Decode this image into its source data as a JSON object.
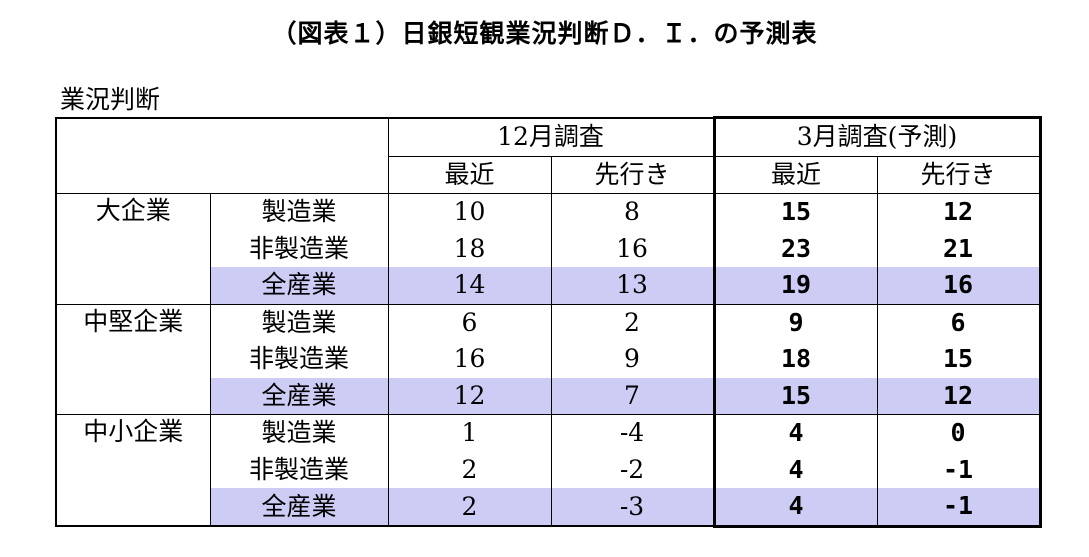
{
  "title": "（図表１）日銀短観業況判断Ｄ．Ｉ．の予測表",
  "section_label": "業況判断",
  "header": {
    "survey_dec": "12月調査",
    "survey_mar": "3月調査(予測)",
    "recent": "最近",
    "outlook": "先行き"
  },
  "groups": [
    {
      "name": "大企業",
      "rows": [
        {
          "label": "製造業",
          "dec_recent": "10",
          "dec_outlook": "8",
          "mar_recent": "15",
          "mar_outlook": "12",
          "highlight": false
        },
        {
          "label": "非製造業",
          "dec_recent": "18",
          "dec_outlook": "16",
          "mar_recent": "23",
          "mar_outlook": "21",
          "highlight": false
        },
        {
          "label": "全産業",
          "dec_recent": "14",
          "dec_outlook": "13",
          "mar_recent": "19",
          "mar_outlook": "16",
          "highlight": true
        }
      ]
    },
    {
      "name": "中堅企業",
      "rows": [
        {
          "label": "製造業",
          "dec_recent": "6",
          "dec_outlook": "2",
          "mar_recent": "9",
          "mar_outlook": "6",
          "highlight": false
        },
        {
          "label": "非製造業",
          "dec_recent": "16",
          "dec_outlook": "9",
          "mar_recent": "18",
          "mar_outlook": "15",
          "highlight": false
        },
        {
          "label": "全産業",
          "dec_recent": "12",
          "dec_outlook": "7",
          "mar_recent": "15",
          "mar_outlook": "12",
          "highlight": true
        }
      ]
    },
    {
      "name": "中小企業",
      "rows": [
        {
          "label": "製造業",
          "dec_recent": "1",
          "dec_outlook": "-4",
          "mar_recent": "4",
          "mar_outlook": "0",
          "highlight": false
        },
        {
          "label": "非製造業",
          "dec_recent": "2",
          "dec_outlook": "-2",
          "mar_recent": "4",
          "mar_outlook": "-1",
          "highlight": false
        },
        {
          "label": "全産業",
          "dec_recent": "2",
          "dec_outlook": "-3",
          "mar_recent": "4",
          "mar_outlook": "-1",
          "highlight": true
        }
      ]
    }
  ],
  "colors": {
    "highlight": "#ccccf5",
    "text": "#000000",
    "border": "#000000"
  }
}
